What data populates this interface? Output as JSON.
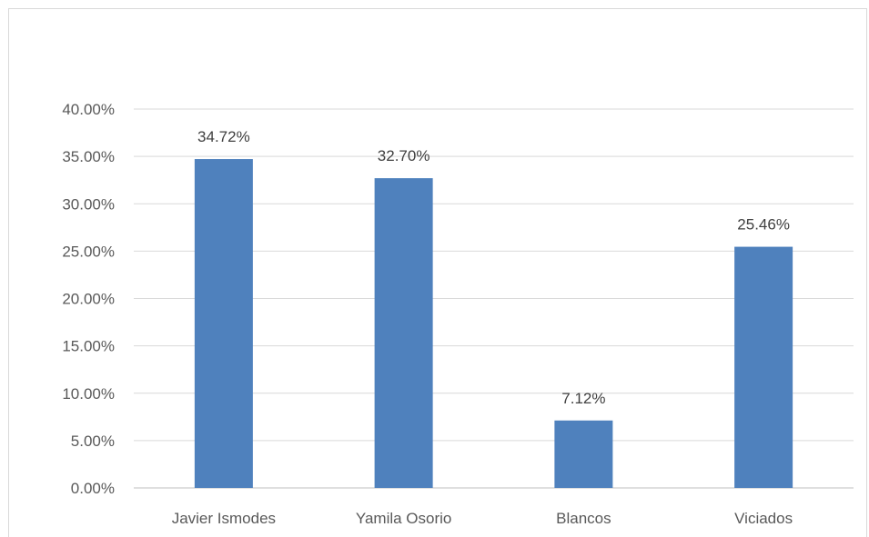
{
  "chart_data": {
    "type": "bar",
    "title": "",
    "xlabel": "",
    "ylabel": "",
    "categories": [
      "Javier Ismodes",
      "Yamila Osorio",
      "Blancos",
      "Viciados"
    ],
    "values": [
      34.72,
      32.7,
      7.12,
      25.46
    ],
    "data_labels": [
      "34.72%",
      "32.70%",
      "7.12%",
      "25.46%"
    ],
    "yticks": [
      0,
      5,
      10,
      15,
      20,
      25,
      30,
      35,
      40
    ],
    "ytick_labels": [
      "0.00%",
      "5.00%",
      "10.00%",
      "15.00%",
      "20.00%",
      "25.00%",
      "30.00%",
      "35.00%",
      "40.00%"
    ],
    "ylim": [
      0,
      40
    ],
    "grid": true,
    "legend": "none",
    "bar_color": "#4f81bd"
  }
}
